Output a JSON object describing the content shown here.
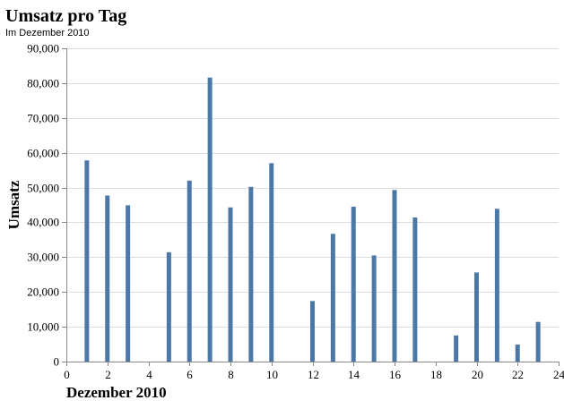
{
  "chart_data": {
    "type": "bar",
    "title": "Umsatz pro Tag",
    "subtitle": "Im Dezember 2010",
    "xlabel": "Dezember 2010",
    "ylabel": "Umsatz",
    "xlim": [
      0,
      24
    ],
    "ylim": [
      0,
      90000
    ],
    "x_ticks": [
      0,
      2,
      4,
      6,
      8,
      10,
      12,
      14,
      16,
      18,
      20,
      22,
      24
    ],
    "y_ticks": [
      0,
      10000,
      20000,
      30000,
      40000,
      50000,
      60000,
      70000,
      80000,
      90000
    ],
    "y_tick_labels": [
      "0",
      "10,000",
      "20,000",
      "30,000",
      "40,000",
      "50,000",
      "60,000",
      "70,000",
      "80,000",
      "90,000"
    ],
    "grid": true,
    "color": "#4c78a8",
    "points": [
      {
        "x": 1,
        "y": 57800
      },
      {
        "x": 2,
        "y": 47700
      },
      {
        "x": 3,
        "y": 44900
      },
      {
        "x": 5,
        "y": 31400
      },
      {
        "x": 6,
        "y": 52000
      },
      {
        "x": 7,
        "y": 81600
      },
      {
        "x": 8,
        "y": 44300
      },
      {
        "x": 9,
        "y": 50200
      },
      {
        "x": 10,
        "y": 57000
      },
      {
        "x": 12,
        "y": 17400
      },
      {
        "x": 13,
        "y": 36700
      },
      {
        "x": 14,
        "y": 44500
      },
      {
        "x": 15,
        "y": 30500
      },
      {
        "x": 16,
        "y": 49300
      },
      {
        "x": 17,
        "y": 41400
      },
      {
        "x": 19,
        "y": 7500
      },
      {
        "x": 20,
        "y": 25600
      },
      {
        "x": 21,
        "y": 43900
      },
      {
        "x": 22,
        "y": 4900
      },
      {
        "x": 23,
        "y": 11400
      }
    ]
  }
}
